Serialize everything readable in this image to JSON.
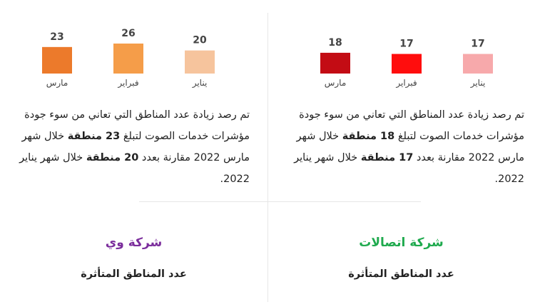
{
  "panels": [
    {
      "company": "شركة وي",
      "company_color": "#7b2d9c",
      "subtitle": "عدد المناطق المتأثرة",
      "para": {
        "t1": "تم رصد زيادة عدد المناطق التي تعاني من سوء جودة مؤشرات خدمات الصوت لتبلغ ",
        "b1": "23 منطقة",
        "t2": " خلال شهر مارس 2022 مقارنة بعدد ",
        "b2": "20 منطقة",
        "t3": " خلال شهر يناير 2022."
      },
      "chart_data": {
        "type": "bar",
        "categories": [
          "مارس",
          "فبراير",
          "يناير"
        ],
        "values": [
          23,
          26,
          20
        ],
        "colors": [
          "#ec7a2b",
          "#f59d49",
          "#f6c49d"
        ]
      }
    },
    {
      "company": "شركة اتصالات",
      "company_color": "#1faa4e",
      "subtitle": "عدد المناطق المتأثرة",
      "para": {
        "t1": "تم رصد زيادة عدد المناطق التي تعاني من سوء جودة مؤشرات خدمات الصوت لتبلغ ",
        "b1": "18 منطقة",
        "t2": " خلال شهر مارس 2022 مقارنة بعدد ",
        "b2": "17 منطقة",
        "t3": " خلال شهر يناير 2022."
      },
      "chart_data": {
        "type": "bar",
        "categories": [
          "مارس",
          "فبراير",
          "يناير"
        ],
        "values": [
          18,
          17,
          17
        ],
        "colors": [
          "#c30c14",
          "#ff0d0d",
          "#f7a9ab"
        ]
      }
    }
  ]
}
